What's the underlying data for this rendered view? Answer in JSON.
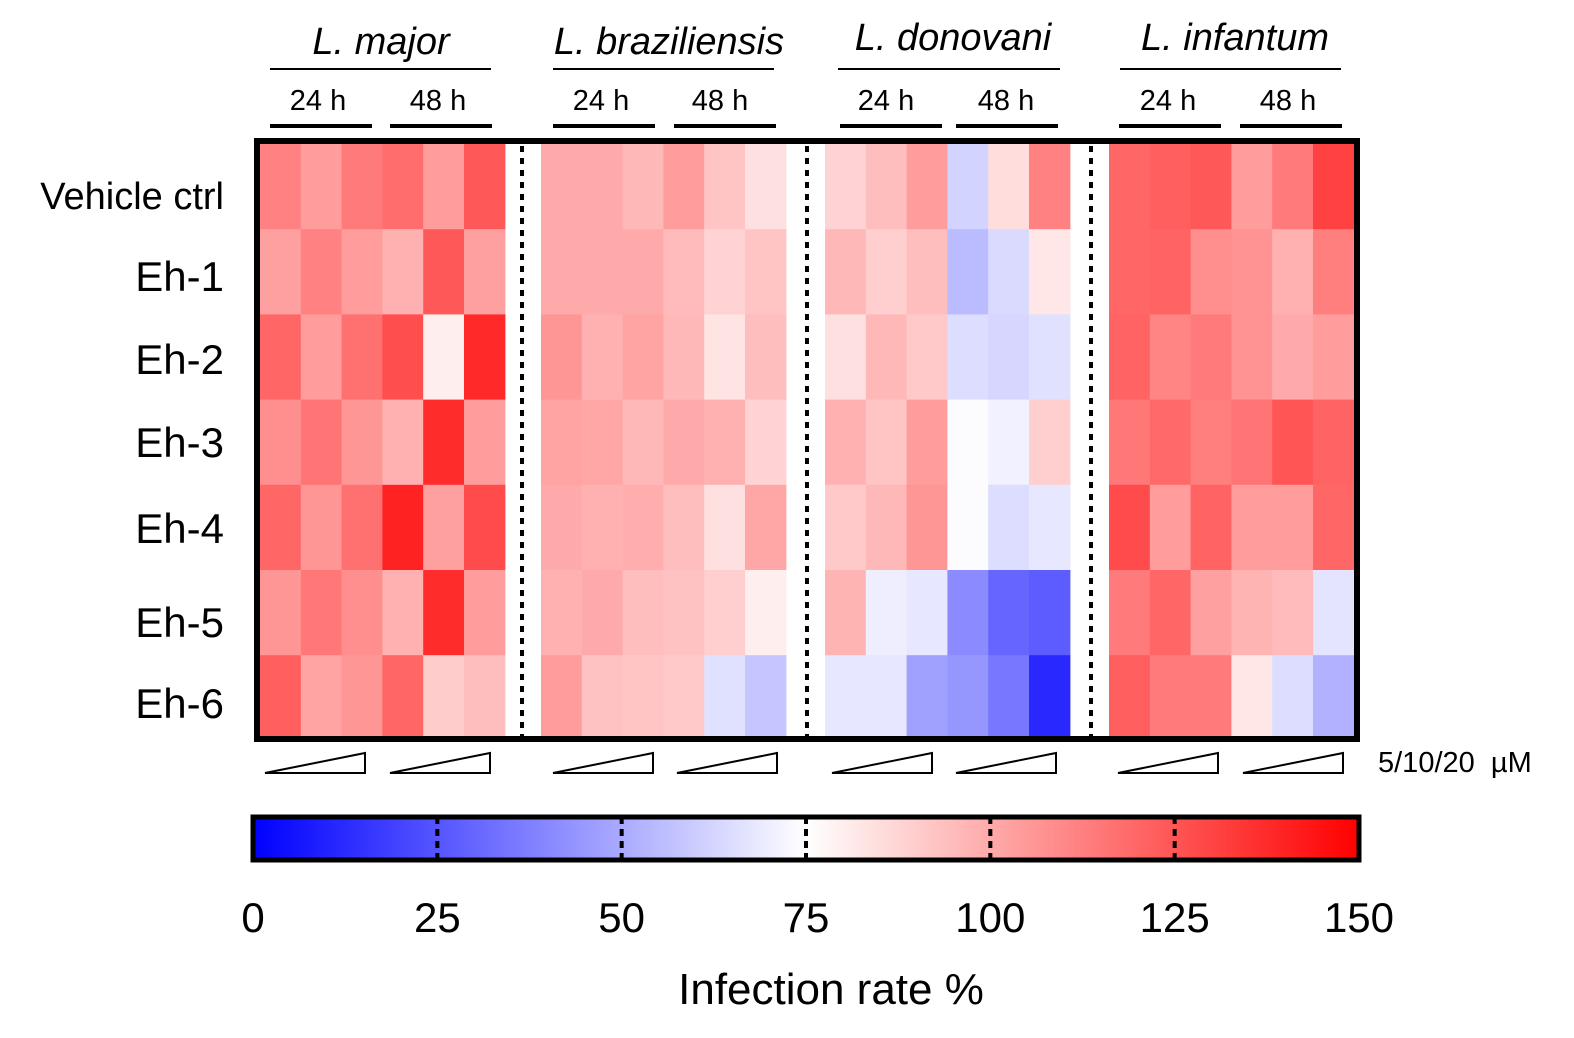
{
  "chart_data": {
    "type": "heatmap",
    "title": "",
    "row_labels": [
      "Vehicle ctrl",
      "Eh-1",
      "Eh-2",
      "Eh-3",
      "Eh-4",
      "Eh-5",
      "Eh-6"
    ],
    "species": [
      {
        "name": "L. major",
        "timepoints": [
          "24 h",
          "48 h"
        ],
        "values": [
          [
            112,
            104,
            114,
            118,
            104,
            124
          ],
          [
            103,
            112,
            104,
            98,
            124,
            103
          ],
          [
            120,
            104,
            117,
            127,
            80,
            138
          ],
          [
            108,
            116,
            106,
            98,
            137,
            104
          ],
          [
            120,
            106,
            117,
            140,
            103,
            128
          ],
          [
            106,
            115,
            108,
            98,
            137,
            104
          ],
          [
            122,
            102,
            106,
            120,
            90,
            94
          ]
        ]
      },
      {
        "name": "L. braziliensis",
        "timepoints": [
          "24 h",
          "48 h"
        ],
        "values": [
          [
            100,
            100,
            96,
            104,
            92,
            84
          ],
          [
            100,
            100,
            100,
            95,
            88,
            92
          ],
          [
            106,
            98,
            102,
            96,
            83,
            94
          ],
          [
            102,
            101,
            96,
            100,
            98,
            88
          ],
          [
            100,
            98,
            99,
            94,
            84,
            101
          ],
          [
            98,
            100,
            94,
            93,
            89,
            80
          ],
          [
            104,
            93,
            92,
            91,
            66,
            58
          ]
        ]
      },
      {
        "name": "L. donovani",
        "timepoints": [
          "24 h",
          "48 h"
        ],
        "values": [
          [
            88,
            94,
            104,
            62,
            85,
            112
          ],
          [
            96,
            89,
            94,
            55,
            64,
            82
          ],
          [
            84,
            96,
            91,
            65,
            63,
            66
          ],
          [
            98,
            92,
            104,
            74,
            71,
            89
          ],
          [
            91,
            96,
            106,
            74,
            65,
            68
          ],
          [
            97,
            70,
            68,
            41,
            30,
            27
          ],
          [
            68,
            68,
            47,
            44,
            35,
            12
          ]
        ]
      },
      {
        "name": "L. infantum",
        "timepoints": [
          "24 h",
          "48 h"
        ],
        "values": [
          [
            120,
            122,
            124,
            104,
            114,
            131
          ],
          [
            120,
            121,
            108,
            107,
            98,
            113
          ],
          [
            121,
            111,
            114,
            107,
            100,
            104
          ],
          [
            115,
            119,
            113,
            116,
            125,
            121
          ],
          [
            128,
            104,
            121,
            104,
            104,
            120
          ],
          [
            114,
            120,
            103,
            97,
            95,
            67
          ],
          [
            122,
            114,
            114,
            82,
            65,
            52
          ]
        ]
      }
    ],
    "concentration_label": "5/10/20  µM",
    "colorbar": {
      "title": "Infection rate %",
      "min": 0,
      "max": 150,
      "center": 75,
      "ticks": [
        0,
        25,
        50,
        75,
        100,
        125,
        150
      ],
      "low_color": "#0000FF",
      "mid_color": "#FFFFFF",
      "high_color": "#FF0000"
    }
  }
}
